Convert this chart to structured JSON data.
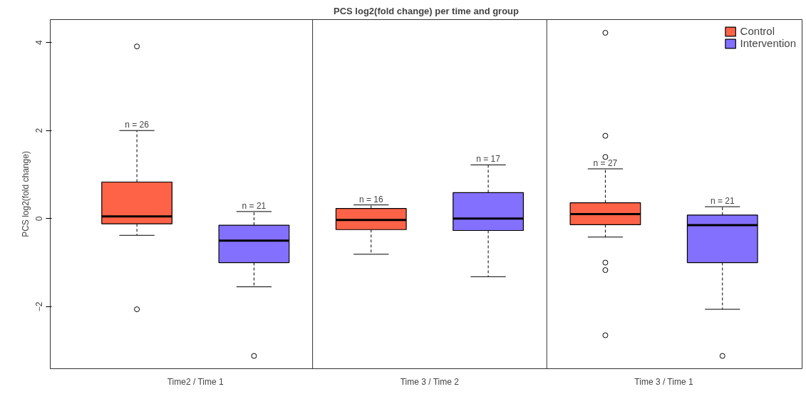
{
  "chart_data": {
    "type": "box",
    "title": "PCS log2(fold change) per time and group",
    "ylabel": "PCS log2(fold change)",
    "categories": [
      "Time2 / Time 1",
      "Time 3 / Time 2",
      "Time 3 / Time 1"
    ],
    "series": [
      {
        "name": "Control",
        "color": "#ff6347",
        "value_labels": [
          "n = 26",
          "n = 16",
          "n = 27"
        ],
        "boxes": [
          {
            "low": -0.38,
            "q1": -0.12,
            "median": 0.05,
            "q3": 0.83,
            "high": 2.0,
            "outliers": [
              3.91,
              -2.06
            ]
          },
          {
            "low": -0.81,
            "q1": -0.25,
            "median": -0.03,
            "q3": 0.23,
            "high": 0.31
          },
          {
            "low": -0.42,
            "q1": -0.14,
            "median": 0.1,
            "q3": 0.36,
            "high": 1.13,
            "outliers": [
              4.22,
              1.88,
              1.4,
              -1.0,
              -1.17,
              -2.65
            ]
          }
        ]
      },
      {
        "name": "Intervention",
        "color": "#8470ff",
        "value_labels": [
          "n = 21",
          "n = 17",
          "n = 21"
        ],
        "boxes": [
          {
            "low": -1.55,
            "q1": -1.0,
            "median": -0.5,
            "q3": -0.15,
            "high": 0.16,
            "outliers": [
              -3.12
            ]
          },
          {
            "low": -1.32,
            "q1": -0.27,
            "median": 0.0,
            "q3": 0.59,
            "high": 1.22
          },
          {
            "low": -2.06,
            "q1": -1.0,
            "median": -0.15,
            "q3": 0.08,
            "high": 0.27,
            "outliers": [
              -3.12
            ]
          }
        ]
      }
    ],
    "ylim": [
      -3.41,
      4.52
    ],
    "yticks": [
      -2,
      0,
      2,
      4
    ],
    "marker": "circle",
    "legend": "top right"
  }
}
